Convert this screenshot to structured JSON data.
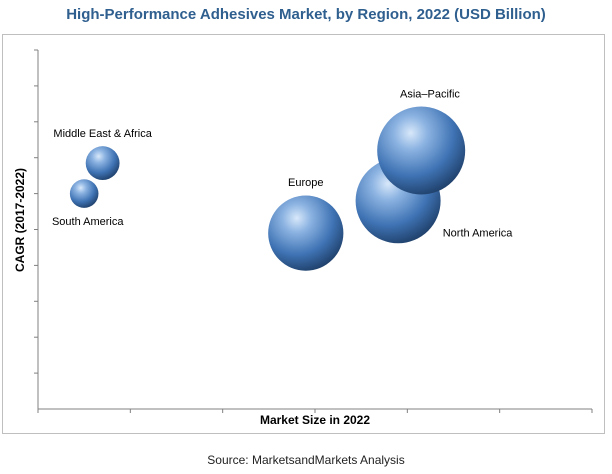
{
  "chart_data": {
    "type": "bubble",
    "title": "High-Performance Adhesives Market, by Region, 2022 (USD Billion)",
    "xlabel": "Market Size in 2022",
    "ylabel": "CAGR (2017-2022)",
    "source": "Source: MarketsandMarkets Analysis",
    "axis_ticks_labeled": false,
    "legend": "none",
    "grid": false,
    "note": "",
    "series": [
      {
        "name": "Middle East & Africa",
        "x": 0.7,
        "y": 0.685,
        "size": 0.45
      },
      {
        "name": "South America",
        "x": 0.5,
        "y": 0.6,
        "size": 0.38
      },
      {
        "name": "Europe",
        "x": 2.9,
        "y": 0.49,
        "size": 1.0
      },
      {
        "name": "North America",
        "x": 3.9,
        "y": 0.58,
        "size": 1.13
      },
      {
        "name": "Asia–Pacific",
        "x": 4.15,
        "y": 0.72,
        "size": 1.17
      }
    ],
    "xlim": [
      0,
      6.0
    ],
    "ylim": [
      0,
      1.0
    ],
    "colors": {
      "bubble_light": "#a9c8ea",
      "bubble_mid": "#4a7fc0",
      "bubble_dark": "#1d3d66",
      "axis": "#808080"
    }
  }
}
